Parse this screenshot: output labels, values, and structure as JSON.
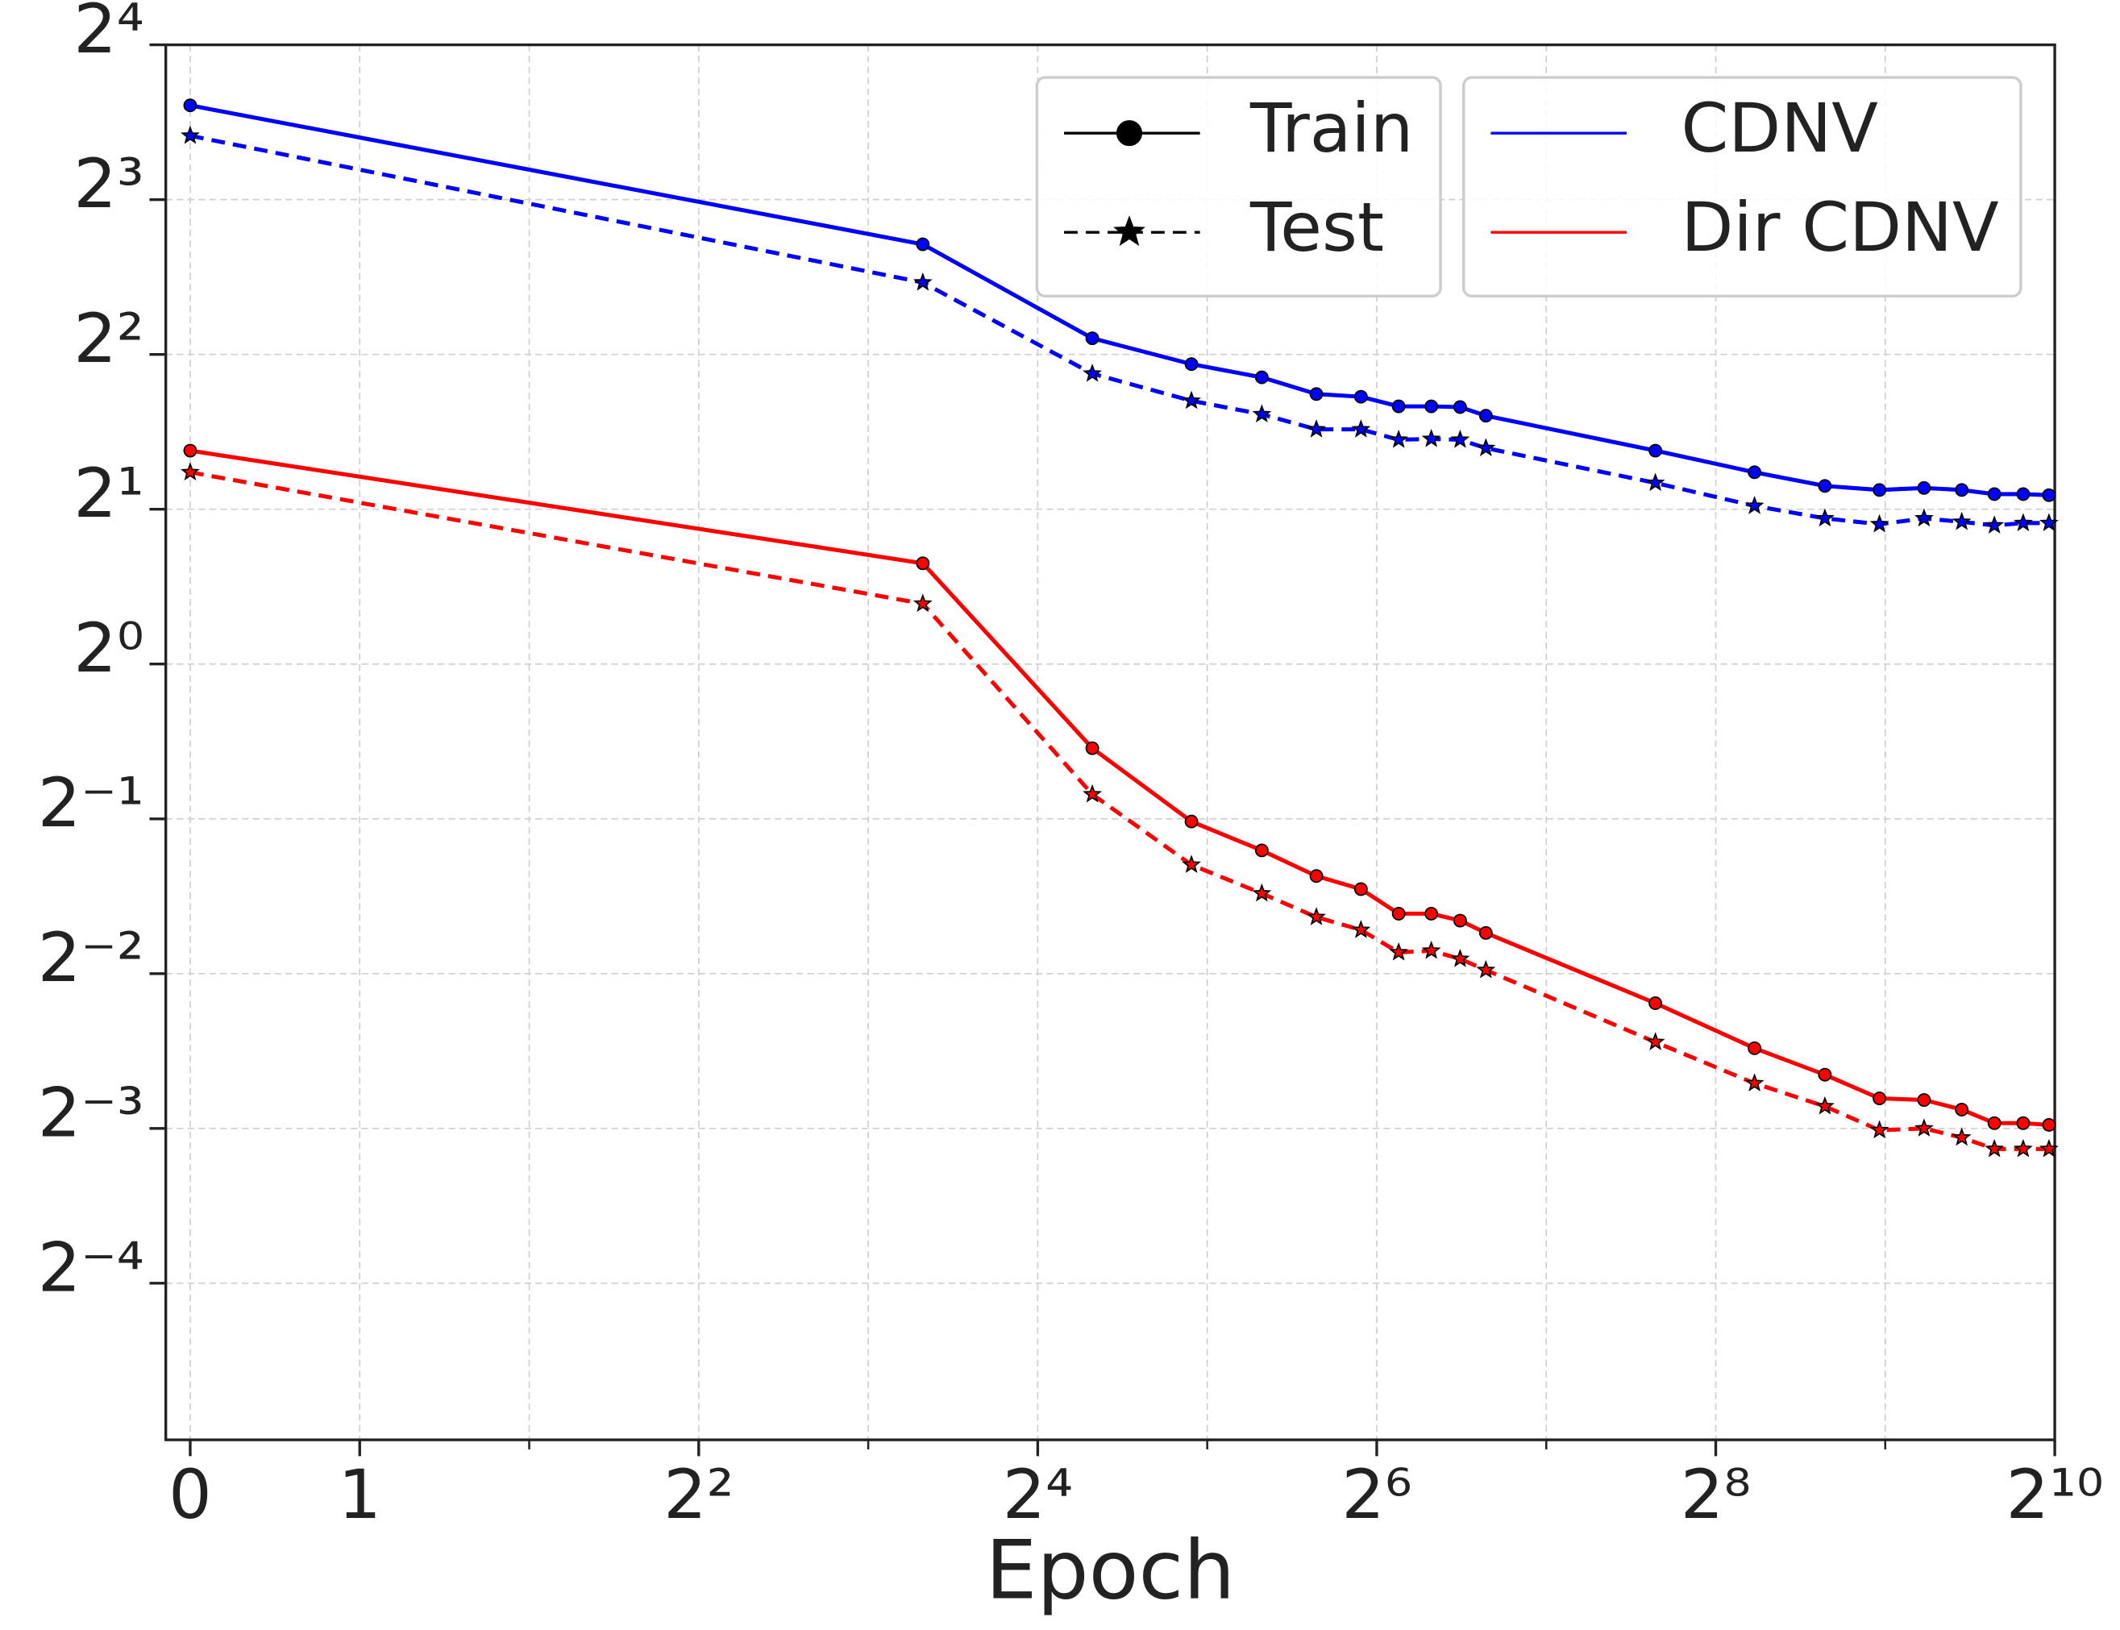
{
  "chart_data": {
    "type": "line",
    "x_label": "Epoch",
    "x_scale": "symlog2",
    "y_scale": "log2",
    "grid": true,
    "x": [
      0,
      10,
      20,
      30,
      40,
      50,
      60,
      70,
      80,
      90,
      100,
      200,
      300,
      400,
      500,
      600,
      700,
      800,
      900,
      1000
    ],
    "series": [
      {
        "name": "CDNV",
        "color": "#0000ff",
        "values": [
          12.2,
          6.55,
          4.3,
          3.83,
          3.61,
          3.35,
          3.31,
          3.17,
          3.17,
          3.16,
          3.04,
          2.6,
          2.36,
          2.22,
          2.18,
          2.2,
          2.18,
          2.14,
          2.14,
          2.13
        ],
        "test_values": [
          10.65,
          5.52,
          3.67,
          3.25,
          3.06,
          2.86,
          2.86,
          2.73,
          2.74,
          2.73,
          2.63,
          2.25,
          2.03,
          1.92,
          1.87,
          1.92,
          1.89,
          1.86,
          1.88,
          1.88
        ]
      },
      {
        "name": "Dir CDNV",
        "color": "#ff0000",
        "values": [
          2.6,
          1.57,
          0.686,
          0.494,
          0.434,
          0.387,
          0.365,
          0.327,
          0.327,
          0.317,
          0.3,
          0.219,
          0.179,
          0.159,
          0.143,
          0.142,
          0.136,
          0.128,
          0.128,
          0.127
        ],
        "test_values": [
          2.36,
          1.31,
          0.558,
          0.407,
          0.358,
          0.322,
          0.304,
          0.275,
          0.277,
          0.267,
          0.254,
          0.184,
          0.153,
          0.138,
          0.124,
          0.125,
          0.12,
          0.114,
          0.114,
          0.114
        ]
      }
    ],
    "line_styles": [
      {
        "name": "Train",
        "dash": "solid",
        "marker": "circle"
      },
      {
        "name": "Test",
        "dash": "dashed",
        "marker": "star"
      }
    ],
    "xlim": [
      -0.144,
      1024
    ],
    "xticks": [
      0,
      1,
      {
        "value": 4,
        "label": "2²"
      },
      {
        "value": 16,
        "label": "2⁴"
      },
      {
        "value": 64,
        "label": "2⁶"
      },
      {
        "value": 256,
        "label": "2⁸"
      },
      {
        "value": 1024,
        "label": "2¹⁰"
      }
    ],
    "xminorticks": [
      2,
      8,
      32,
      128,
      512
    ],
    "ylim": [
      0.031,
      16
    ],
    "yticks": [
      {
        "value": 0.0625,
        "label": "2⁻⁴"
      },
      {
        "value": 0.125,
        "label": "2⁻³"
      },
      {
        "value": 0.25,
        "label": "2⁻²"
      },
      {
        "value": 0.5,
        "label": "2⁻¹"
      },
      {
        "value": 1,
        "label": "2⁰"
      },
      {
        "value": 2,
        "label": "2¹"
      },
      {
        "value": 4,
        "label": "2²"
      },
      {
        "value": 8,
        "label": "2³"
      },
      {
        "value": 16,
        "label": "2⁴"
      }
    ]
  }
}
